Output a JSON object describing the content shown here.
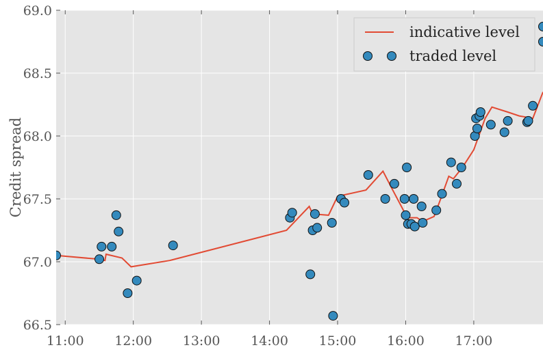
{
  "chart_data": {
    "type": "line",
    "title": "",
    "xlabel": "",
    "ylabel": "Credit spread",
    "xlim": [
      "10:52",
      "18:01"
    ],
    "ylim": [
      66.5,
      69.0
    ],
    "xticks": [
      "11:00",
      "12:00",
      "13:00",
      "14:00",
      "15:00",
      "16:00",
      "17:00"
    ],
    "yticks": [
      "66.5",
      "67.0",
      "67.5",
      "68.0",
      "68.5",
      "69.0"
    ],
    "grid": true,
    "legend_position": "top-right",
    "background_color": "#e5e5e5",
    "series": [
      {
        "name": "indicative level",
        "kind": "line",
        "color": "#e24a33",
        "points": [
          [
            "10:52",
            67.05
          ],
          [
            "11:30",
            67.02
          ],
          [
            "11:35",
            67.01
          ],
          [
            "11:36",
            67.06
          ],
          [
            "11:50",
            67.03
          ],
          [
            "11:58",
            66.96
          ],
          [
            "12:32",
            67.01
          ],
          [
            "14:15",
            67.25
          ],
          [
            "14:35",
            67.44
          ],
          [
            "14:38",
            67.38
          ],
          [
            "14:52",
            67.37
          ],
          [
            "15:00",
            67.52
          ],
          [
            "15:25",
            67.57
          ],
          [
            "15:40",
            67.72
          ],
          [
            "15:48",
            67.58
          ],
          [
            "15:58",
            67.41
          ],
          [
            "16:02",
            67.35
          ],
          [
            "16:10",
            67.35
          ],
          [
            "16:15",
            67.32
          ],
          [
            "16:25",
            67.36
          ],
          [
            "16:30",
            67.48
          ],
          [
            "16:38",
            67.68
          ],
          [
            "16:42",
            67.66
          ],
          [
            "16:50",
            67.75
          ],
          [
            "17:00",
            67.89
          ],
          [
            "17:10",
            68.14
          ],
          [
            "17:16",
            68.23
          ],
          [
            "17:30",
            68.19
          ],
          [
            "17:40",
            68.16
          ],
          [
            "17:52",
            68.14
          ],
          [
            "18:01",
            68.35
          ]
        ]
      },
      {
        "name": "traded level",
        "kind": "scatter",
        "color": "#348abd",
        "points": [
          [
            "10:52",
            67.05
          ],
          [
            "11:30",
            67.02
          ],
          [
            "11:32",
            67.12
          ],
          [
            "11:41",
            67.12
          ],
          [
            "11:45",
            67.37
          ],
          [
            "11:47",
            67.24
          ],
          [
            "11:55",
            66.75
          ],
          [
            "12:03",
            66.85
          ],
          [
            "12:35",
            67.13
          ],
          [
            "14:18",
            67.35
          ],
          [
            "14:20",
            67.39
          ],
          [
            "14:36",
            66.9
          ],
          [
            "14:38",
            67.25
          ],
          [
            "14:40",
            67.38
          ],
          [
            "14:42",
            67.27
          ],
          [
            "14:55",
            67.31
          ],
          [
            "14:56",
            66.57
          ],
          [
            "15:03",
            67.5
          ],
          [
            "15:06",
            67.47
          ],
          [
            "15:27",
            67.69
          ],
          [
            "15:42",
            67.5
          ],
          [
            "15:50",
            67.62
          ],
          [
            "15:59",
            67.5
          ],
          [
            "16:00",
            67.37
          ],
          [
            "16:01",
            67.75
          ],
          [
            "16:02",
            67.3
          ],
          [
            "16:05",
            67.3
          ],
          [
            "16:07",
            67.5
          ],
          [
            "16:08",
            67.28
          ],
          [
            "16:14",
            67.44
          ],
          [
            "16:15",
            67.31
          ],
          [
            "16:27",
            67.41
          ],
          [
            "16:32",
            67.54
          ],
          [
            "16:40",
            67.79
          ],
          [
            "16:45",
            67.62
          ],
          [
            "16:49",
            67.75
          ],
          [
            "17:01",
            68.0
          ],
          [
            "17:02",
            68.14
          ],
          [
            "17:03",
            68.06
          ],
          [
            "17:05",
            68.16
          ],
          [
            "17:06",
            68.19
          ],
          [
            "17:15",
            68.09
          ],
          [
            "17:27",
            68.03
          ],
          [
            "17:30",
            68.12
          ],
          [
            "17:47",
            68.11
          ],
          [
            "17:48",
            68.12
          ],
          [
            "17:52",
            68.24
          ],
          [
            "18:01",
            68.75
          ],
          [
            "18:01",
            68.87
          ]
        ]
      }
    ]
  }
}
